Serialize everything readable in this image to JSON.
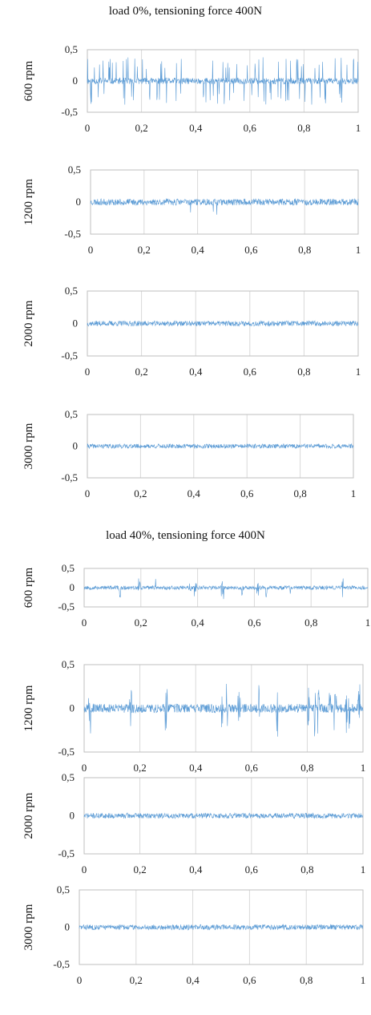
{
  "groups": [
    {
      "title": "load 0%, tensioning force 400N"
    },
    {
      "title": "load 40%, tensioning force 400N"
    }
  ],
  "chart_data": [
    {
      "type": "line",
      "group": 0,
      "ylabel": "600 rpm",
      "ylim": [
        -0.5,
        0.5
      ],
      "xlim": [
        0,
        1
      ],
      "y_ticks": [
        "0,5",
        "0",
        "-0,5"
      ],
      "x_ticks": [
        "0",
        "0,2",
        "0,4",
        "0,6",
        "0,8",
        "1"
      ],
      "series": [
        {
          "pattern": "impulsive",
          "base_amplitude": 0.05,
          "spike_amplitude": 0.38,
          "spikes_per_unit": 90,
          "seed": 11
        }
      ]
    },
    {
      "type": "line",
      "group": 0,
      "ylabel": "1200 rpm",
      "ylim": [
        -0.5,
        0.5
      ],
      "xlim": [
        0,
        1
      ],
      "y_ticks": [
        "0,5",
        "0",
        "-0,5"
      ],
      "x_ticks": [
        "0",
        "0,2",
        "0,4",
        "0,6",
        "0,8",
        "1"
      ],
      "series": [
        {
          "pattern": "noise",
          "base_amplitude": 0.05,
          "spike_amplitude": 0.2,
          "spikes_per_unit": 6,
          "seed": 23
        }
      ]
    },
    {
      "type": "line",
      "group": 0,
      "ylabel": "2000 rpm",
      "ylim": [
        -0.5,
        0.5
      ],
      "xlim": [
        0,
        1
      ],
      "y_ticks": [
        "0,5",
        "0",
        "-0,5"
      ],
      "x_ticks": [
        "0",
        "0,2",
        "0,4",
        "0,6",
        "0,8",
        "1"
      ],
      "series": [
        {
          "pattern": "noise",
          "base_amplitude": 0.04,
          "spike_amplitude": 0.05,
          "spikes_per_unit": 0,
          "seed": 37
        }
      ]
    },
    {
      "type": "line",
      "group": 0,
      "ylabel": "3000 rpm",
      "ylim": [
        -0.5,
        0.5
      ],
      "xlim": [
        0,
        1
      ],
      "y_ticks": [
        "0,5",
        "0",
        "-0,5"
      ],
      "x_ticks": [
        "0",
        "0,2",
        "0,4",
        "0,6",
        "0,8",
        "1"
      ],
      "series": [
        {
          "pattern": "noise",
          "base_amplitude": 0.035,
          "spike_amplitude": 0.05,
          "spikes_per_unit": 0,
          "seed": 41
        }
      ]
    },
    {
      "type": "line",
      "group": 1,
      "ylabel": "600 rpm",
      "ylim": [
        -0.5,
        0.5
      ],
      "xlim": [
        0,
        1
      ],
      "y_ticks": [
        "0,5",
        "0",
        "-0,5"
      ],
      "x_ticks": [
        "0",
        "0,2",
        "0,4",
        "0,6",
        "0,8",
        "1"
      ],
      "series": [
        {
          "pattern": "bursty",
          "base_amplitude": 0.05,
          "spike_amplitude": 0.33,
          "spikes_per_unit": 45,
          "seed": 53
        }
      ]
    },
    {
      "type": "line",
      "group": 1,
      "ylabel": "1200 rpm",
      "ylim": [
        -0.5,
        0.5
      ],
      "xlim": [
        0,
        1
      ],
      "y_ticks": [
        "0,5",
        "0",
        "-0,5"
      ],
      "x_ticks": [
        "0",
        "0,2",
        "0,4",
        "0,6",
        "0,8",
        "1"
      ],
      "series": [
        {
          "pattern": "bursty",
          "base_amplitude": 0.05,
          "spike_amplitude": 0.35,
          "spikes_per_unit": 38,
          "seed": 67
        }
      ]
    },
    {
      "type": "line",
      "group": 1,
      "ylabel": "2000 rpm",
      "ylim": [
        -0.5,
        0.5
      ],
      "xlim": [
        0,
        1
      ],
      "y_ticks": [
        "0,5",
        "0",
        "-0,5"
      ],
      "x_ticks": [
        "0",
        "0,2",
        "0,4",
        "0,6",
        "0,8",
        "1"
      ],
      "series": [
        {
          "pattern": "noise",
          "base_amplitude": 0.035,
          "spike_amplitude": 0.05,
          "spikes_per_unit": 0,
          "seed": 71
        }
      ]
    },
    {
      "type": "line",
      "group": 1,
      "ylabel": "3000 rpm",
      "ylim": [
        -0.5,
        0.5
      ],
      "xlim": [
        0,
        1
      ],
      "y_ticks": [
        "0,5",
        "0",
        "-0,5"
      ],
      "x_ticks": [
        "0",
        "0,2",
        "0,4",
        "0,6",
        "0,8",
        "1"
      ],
      "series": [
        {
          "pattern": "noise",
          "base_amplitude": 0.035,
          "spike_amplitude": 0.05,
          "spikes_per_unit": 0,
          "seed": 83
        }
      ]
    }
  ],
  "colors": {
    "signal": "#5b9bd5",
    "grid": "#d9d9d9"
  }
}
